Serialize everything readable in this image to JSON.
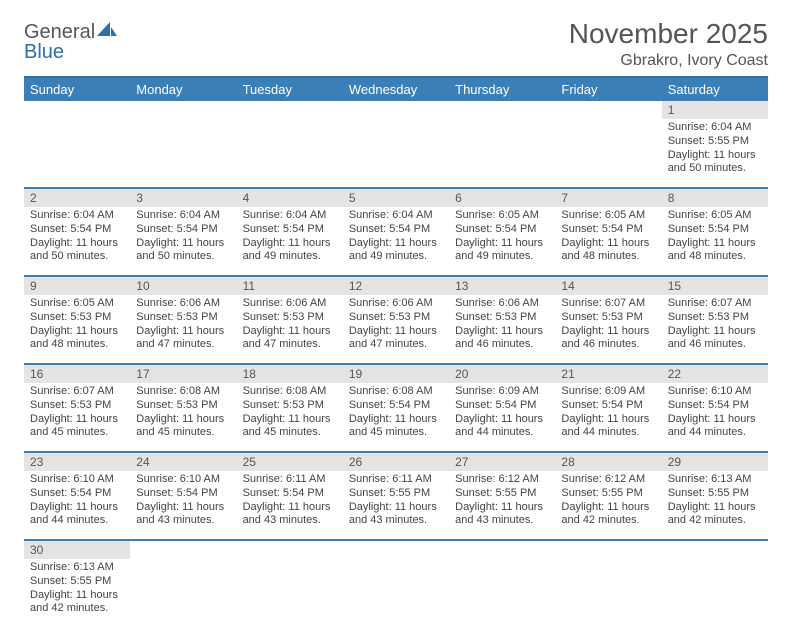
{
  "logo": {
    "general": "General",
    "blue": "Blue"
  },
  "title": "November 2025",
  "subtitle": "Gbrakro, Ivory Coast",
  "colors": {
    "header_bg": "#3b7fb6",
    "header_border_top": "#2f6fa8",
    "row_divider": "#3b7fb6",
    "daynum_bg": "#e4e4e4",
    "text": "#444444",
    "title_color": "#555555"
  },
  "weekdays": [
    "Sunday",
    "Monday",
    "Tuesday",
    "Wednesday",
    "Thursday",
    "Friday",
    "Saturday"
  ],
  "weeks": [
    [
      null,
      null,
      null,
      null,
      null,
      null,
      {
        "n": "1",
        "sr": "Sunrise: 6:04 AM",
        "ss": "Sunset: 5:55 PM",
        "d1": "Daylight: 11 hours",
        "d2": "and 50 minutes."
      }
    ],
    [
      {
        "n": "2",
        "sr": "Sunrise: 6:04 AM",
        "ss": "Sunset: 5:54 PM",
        "d1": "Daylight: 11 hours",
        "d2": "and 50 minutes."
      },
      {
        "n": "3",
        "sr": "Sunrise: 6:04 AM",
        "ss": "Sunset: 5:54 PM",
        "d1": "Daylight: 11 hours",
        "d2": "and 50 minutes."
      },
      {
        "n": "4",
        "sr": "Sunrise: 6:04 AM",
        "ss": "Sunset: 5:54 PM",
        "d1": "Daylight: 11 hours",
        "d2": "and 49 minutes."
      },
      {
        "n": "5",
        "sr": "Sunrise: 6:04 AM",
        "ss": "Sunset: 5:54 PM",
        "d1": "Daylight: 11 hours",
        "d2": "and 49 minutes."
      },
      {
        "n": "6",
        "sr": "Sunrise: 6:05 AM",
        "ss": "Sunset: 5:54 PM",
        "d1": "Daylight: 11 hours",
        "d2": "and 49 minutes."
      },
      {
        "n": "7",
        "sr": "Sunrise: 6:05 AM",
        "ss": "Sunset: 5:54 PM",
        "d1": "Daylight: 11 hours",
        "d2": "and 48 minutes."
      },
      {
        "n": "8",
        "sr": "Sunrise: 6:05 AM",
        "ss": "Sunset: 5:54 PM",
        "d1": "Daylight: 11 hours",
        "d2": "and 48 minutes."
      }
    ],
    [
      {
        "n": "9",
        "sr": "Sunrise: 6:05 AM",
        "ss": "Sunset: 5:53 PM",
        "d1": "Daylight: 11 hours",
        "d2": "and 48 minutes."
      },
      {
        "n": "10",
        "sr": "Sunrise: 6:06 AM",
        "ss": "Sunset: 5:53 PM",
        "d1": "Daylight: 11 hours",
        "d2": "and 47 minutes."
      },
      {
        "n": "11",
        "sr": "Sunrise: 6:06 AM",
        "ss": "Sunset: 5:53 PM",
        "d1": "Daylight: 11 hours",
        "d2": "and 47 minutes."
      },
      {
        "n": "12",
        "sr": "Sunrise: 6:06 AM",
        "ss": "Sunset: 5:53 PM",
        "d1": "Daylight: 11 hours",
        "d2": "and 47 minutes."
      },
      {
        "n": "13",
        "sr": "Sunrise: 6:06 AM",
        "ss": "Sunset: 5:53 PM",
        "d1": "Daylight: 11 hours",
        "d2": "and 46 minutes."
      },
      {
        "n": "14",
        "sr": "Sunrise: 6:07 AM",
        "ss": "Sunset: 5:53 PM",
        "d1": "Daylight: 11 hours",
        "d2": "and 46 minutes."
      },
      {
        "n": "15",
        "sr": "Sunrise: 6:07 AM",
        "ss": "Sunset: 5:53 PM",
        "d1": "Daylight: 11 hours",
        "d2": "and 46 minutes."
      }
    ],
    [
      {
        "n": "16",
        "sr": "Sunrise: 6:07 AM",
        "ss": "Sunset: 5:53 PM",
        "d1": "Daylight: 11 hours",
        "d2": "and 45 minutes."
      },
      {
        "n": "17",
        "sr": "Sunrise: 6:08 AM",
        "ss": "Sunset: 5:53 PM",
        "d1": "Daylight: 11 hours",
        "d2": "and 45 minutes."
      },
      {
        "n": "18",
        "sr": "Sunrise: 6:08 AM",
        "ss": "Sunset: 5:53 PM",
        "d1": "Daylight: 11 hours",
        "d2": "and 45 minutes."
      },
      {
        "n": "19",
        "sr": "Sunrise: 6:08 AM",
        "ss": "Sunset: 5:54 PM",
        "d1": "Daylight: 11 hours",
        "d2": "and 45 minutes."
      },
      {
        "n": "20",
        "sr": "Sunrise: 6:09 AM",
        "ss": "Sunset: 5:54 PM",
        "d1": "Daylight: 11 hours",
        "d2": "and 44 minutes."
      },
      {
        "n": "21",
        "sr": "Sunrise: 6:09 AM",
        "ss": "Sunset: 5:54 PM",
        "d1": "Daylight: 11 hours",
        "d2": "and 44 minutes."
      },
      {
        "n": "22",
        "sr": "Sunrise: 6:10 AM",
        "ss": "Sunset: 5:54 PM",
        "d1": "Daylight: 11 hours",
        "d2": "and 44 minutes."
      }
    ],
    [
      {
        "n": "23",
        "sr": "Sunrise: 6:10 AM",
        "ss": "Sunset: 5:54 PM",
        "d1": "Daylight: 11 hours",
        "d2": "and 44 minutes."
      },
      {
        "n": "24",
        "sr": "Sunrise: 6:10 AM",
        "ss": "Sunset: 5:54 PM",
        "d1": "Daylight: 11 hours",
        "d2": "and 43 minutes."
      },
      {
        "n": "25",
        "sr": "Sunrise: 6:11 AM",
        "ss": "Sunset: 5:54 PM",
        "d1": "Daylight: 11 hours",
        "d2": "and 43 minutes."
      },
      {
        "n": "26",
        "sr": "Sunrise: 6:11 AM",
        "ss": "Sunset: 5:55 PM",
        "d1": "Daylight: 11 hours",
        "d2": "and 43 minutes."
      },
      {
        "n": "27",
        "sr": "Sunrise: 6:12 AM",
        "ss": "Sunset: 5:55 PM",
        "d1": "Daylight: 11 hours",
        "d2": "and 43 minutes."
      },
      {
        "n": "28",
        "sr": "Sunrise: 6:12 AM",
        "ss": "Sunset: 5:55 PM",
        "d1": "Daylight: 11 hours",
        "d2": "and 42 minutes."
      },
      {
        "n": "29",
        "sr": "Sunrise: 6:13 AM",
        "ss": "Sunset: 5:55 PM",
        "d1": "Daylight: 11 hours",
        "d2": "and 42 minutes."
      }
    ],
    [
      {
        "n": "30",
        "sr": "Sunrise: 6:13 AM",
        "ss": "Sunset: 5:55 PM",
        "d1": "Daylight: 11 hours",
        "d2": "and 42 minutes."
      },
      null,
      null,
      null,
      null,
      null,
      null
    ]
  ]
}
